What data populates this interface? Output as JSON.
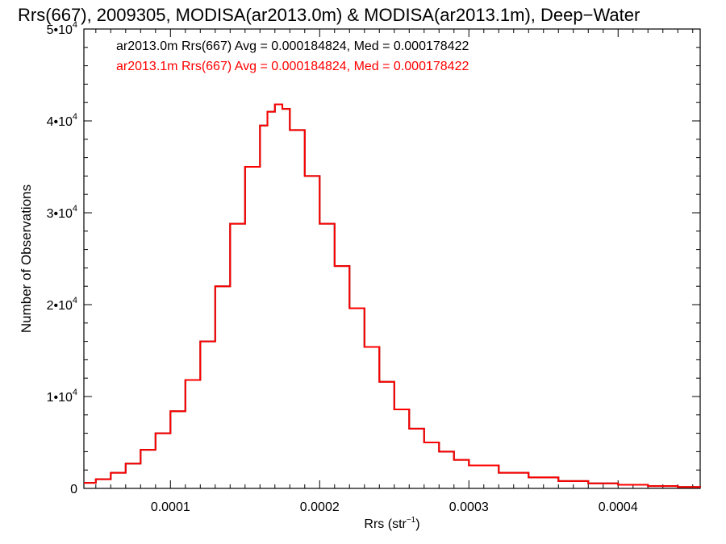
{
  "chart_data": {
    "type": "line",
    "step": true,
    "title": "Rrs(667), 2009305, MODISA(ar2013.0m) & MODISA(ar2013.1m), Deep−Water",
    "xlabel_main": "Rrs (str",
    "xlabel_sup": "−1",
    "xlabel_end": ")",
    "ylabel": "Number of Observations",
    "xlim": [
      4.2e-05,
      0.000455
    ],
    "ylim": [
      0,
      50000
    ],
    "x_ticks": [
      {
        "value": 0.0001,
        "label": "0.0001"
      },
      {
        "value": 0.0002,
        "label": "0.0002"
      },
      {
        "value": 0.0003,
        "label": "0.0003"
      },
      {
        "value": 0.0004,
        "label": "0.0004"
      }
    ],
    "y_ticks": [
      {
        "value": 0,
        "label": "0",
        "sup": ""
      },
      {
        "value": 10000,
        "label": "1•10",
        "sup": "4"
      },
      {
        "value": 20000,
        "label": "2•10",
        "sup": "4"
      },
      {
        "value": 30000,
        "label": "3•10",
        "sup": "4"
      },
      {
        "value": 40000,
        "label": "4•10",
        "sup": "4"
      },
      {
        "value": 50000,
        "label": "5•10",
        "sup": "4"
      }
    ],
    "series": [
      {
        "name": "ar2013.0m",
        "color": "#000000",
        "legend": "ar2013.0m Rrs(667) Avg = 0.000184824, Med = 0.000178422",
        "x": [
          4.2e-05,
          5e-05,
          6e-05,
          7e-05,
          8e-05,
          9e-05,
          0.0001,
          0.00011,
          0.00012,
          0.00013,
          0.00014,
          0.00015,
          0.00016,
          0.000165,
          0.00017,
          0.000175,
          0.00018,
          0.00019,
          0.0002,
          0.00021,
          0.00022,
          0.00023,
          0.00024,
          0.00025,
          0.00026,
          0.00027,
          0.00028,
          0.00029,
          0.0003,
          0.00032,
          0.00034,
          0.00036,
          0.00038,
          0.0004,
          0.00042,
          0.00044,
          0.000455
        ],
        "y": [
          600,
          1000,
          1700,
          2700,
          4200,
          6000,
          8400,
          11800,
          16000,
          22000,
          28800,
          35000,
          39500,
          41000,
          41800,
          41300,
          39000,
          34000,
          28800,
          24200,
          19600,
          15400,
          11600,
          8600,
          6500,
          5000,
          4000,
          3100,
          2500,
          1700,
          1200,
          800,
          550,
          400,
          250,
          150,
          100
        ]
      },
      {
        "name": "ar2013.1m",
        "color": "#ff0000",
        "legend": "ar2013.1m Rrs(667) Avg = 0.000184824, Med = 0.000178422",
        "x": [
          4.2e-05,
          5e-05,
          6e-05,
          7e-05,
          8e-05,
          9e-05,
          0.0001,
          0.00011,
          0.00012,
          0.00013,
          0.00014,
          0.00015,
          0.00016,
          0.000165,
          0.00017,
          0.000175,
          0.00018,
          0.00019,
          0.0002,
          0.00021,
          0.00022,
          0.00023,
          0.00024,
          0.00025,
          0.00026,
          0.00027,
          0.00028,
          0.00029,
          0.0003,
          0.00032,
          0.00034,
          0.00036,
          0.00038,
          0.0004,
          0.00042,
          0.00044,
          0.000455
        ],
        "y": [
          600,
          1000,
          1700,
          2700,
          4200,
          6000,
          8400,
          11800,
          16000,
          22000,
          28800,
          35000,
          39500,
          41000,
          41800,
          41300,
          39000,
          34000,
          28800,
          24200,
          19600,
          15400,
          11600,
          8600,
          6500,
          5000,
          4000,
          3100,
          2500,
          1700,
          1200,
          800,
          550,
          400,
          250,
          150,
          100
        ]
      }
    ]
  }
}
